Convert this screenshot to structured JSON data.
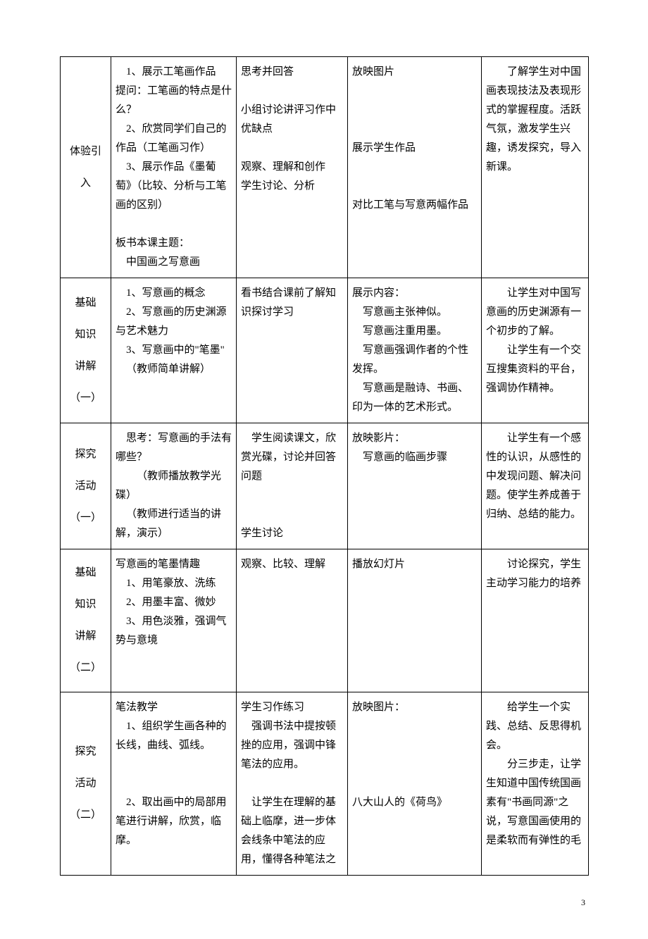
{
  "page_number": "3",
  "rows": [
    {
      "label": "体验引入",
      "col2": {
        "lines": [
          {
            "t": "1、展示工笔画作品",
            "cls": "indent1"
          },
          {
            "t": "提问：工笔画的特点是什么？"
          },
          {
            "t": "2、欣赏同学们自己的作品（工笔画习作）",
            "cls": "indent1"
          },
          {
            "t": "3、展示作品《墨葡萄》（比较、分析与工笔画的区别）",
            "cls": "indent1"
          },
          {
            "t": " "
          },
          {
            "t": "板书本课主题："
          },
          {
            "t": "中国画之写意画",
            "cls": "indent1"
          }
        ]
      },
      "col3": {
        "lines": [
          {
            "t": "思考并回答"
          },
          {
            "t": " "
          },
          {
            "t": "小组讨论讲评习作中优缺点"
          },
          {
            "t": " "
          },
          {
            "t": "观察、理解和创作"
          },
          {
            "t": "学生讨论、分析"
          }
        ]
      },
      "col4": {
        "lines": [
          {
            "t": "放映图片"
          },
          {
            "t": " "
          },
          {
            "t": " "
          },
          {
            "t": " "
          },
          {
            "t": "展示学生作品"
          },
          {
            "t": " "
          },
          {
            "t": " "
          },
          {
            "t": "对比工笔与写意两幅作品"
          }
        ]
      },
      "col5": {
        "lines": [
          {
            "t": "了解学生对中国画表现技法及表现形式的掌握程度。活跃气氛，激发学生兴趣，诱发探究，导入新课。",
            "cls": "indent"
          }
        ]
      }
    },
    {
      "label": "基础\n知识\n讲解\n（一）",
      "col2": {
        "lines": [
          {
            "t": "1、写意画的概念",
            "cls": "indent1"
          },
          {
            "t": "2、写意画的历史渊源与艺术魅力",
            "cls": "indent1"
          },
          {
            "t": "3、写意画中的\"笔墨\"",
            "cls": "indent1"
          },
          {
            "t": "（教师简单讲解）",
            "cls": "indent1"
          }
        ]
      },
      "col3": {
        "lines": [
          {
            "t": "看书结合课前了解知识探讨学习"
          }
        ]
      },
      "col4": {
        "lines": [
          {
            "t": "展示内容："
          },
          {
            "t": "写意画主张神似。",
            "cls": "indent1"
          },
          {
            "t": "写意画注重用墨。",
            "cls": "indent1"
          },
          {
            "t": "写意画强调作者的个性发挥。",
            "cls": "indent1"
          },
          {
            "t": "写意画是融诗、书画、印为一体的艺术形式。",
            "cls": "indent1"
          }
        ]
      },
      "col5": {
        "lines": [
          {
            "t": "让学生对中国写意画的历史渊源有一个初步的了解。",
            "cls": "indent"
          },
          {
            "t": "让学生有一个交互搜集资料的平台，强调协作精神。",
            "cls": "indent"
          }
        ]
      }
    },
    {
      "label": "探究\n活动\n（一）",
      "col2": {
        "lines": [
          {
            "t": "思考：写意画的手法有哪些？",
            "cls": "indent1"
          },
          {
            "t": "（教师播放教学光碟）",
            "cls": "indent"
          },
          {
            "t": "（教师进行适当的讲解，演示）",
            "cls": "indent1"
          }
        ]
      },
      "col3": {
        "lines": [
          {
            "t": "学生阅读课文，欣赏光碟，讨论并回答问题",
            "cls": "indent1"
          },
          {
            "t": " "
          },
          {
            "t": " "
          },
          {
            "t": "学生讨论"
          }
        ]
      },
      "col4": {
        "lines": [
          {
            "t": "放映影片："
          },
          {
            "t": "写意画的临画步骤",
            "cls": "indent1"
          }
        ]
      },
      "col5": {
        "lines": [
          {
            "t": "让学生有一个感性的认识，从感性的中发现问题、解决问题。使学生养成善于归纳、总结的能力。",
            "cls": "indent"
          }
        ]
      }
    },
    {
      "label": "基础\n知识\n讲解\n（二）",
      "col2": {
        "lines": [
          {
            "t": "写意画的笔墨情趣"
          },
          {
            "t": "1、用笔豪放、洗练",
            "cls": "indent1"
          },
          {
            "t": "2、用墨丰富、微妙",
            "cls": "indent1"
          },
          {
            "t": "3、用色淡雅，强调气势与意境",
            "cls": "indent1"
          }
        ]
      },
      "col3": {
        "lines": [
          {
            "t": "观察、比较、理解"
          }
        ]
      },
      "col4": {
        "lines": [
          {
            "t": "播放幻灯片"
          }
        ]
      },
      "col5": {
        "lines": [
          {
            "t": "讨论探究，学生主动学习能力的培养",
            "cls": "indent"
          }
        ]
      }
    },
    {
      "label": "探究\n活动\n（二）",
      "col2": {
        "lines": [
          {
            "t": "笔法教学"
          },
          {
            "t": "1、组织学生画各种的长线，曲线、弧线。",
            "cls": "indent1"
          },
          {
            "t": " "
          },
          {
            "t": " "
          },
          {
            "t": "2、取出画中的局部用笔进行讲解，欣赏，临摩。",
            "cls": "indent1"
          }
        ]
      },
      "col3": {
        "lines": [
          {
            "t": "学生习作练习"
          },
          {
            "t": "强调书法中提按顿挫的应用，强调中锋笔法的应用。",
            "cls": "indent1"
          },
          {
            "t": " "
          },
          {
            "t": "让学生在理解的基础上临摩，进一步体会线条中笔法的应用，懂得各种笔法之",
            "cls": "indent1"
          }
        ]
      },
      "col4": {
        "lines": [
          {
            "t": "放映图片："
          },
          {
            "t": " "
          },
          {
            "t": " "
          },
          {
            "t": " "
          },
          {
            "t": " "
          },
          {
            "t": "八大山人的《荷鸟》"
          }
        ]
      },
      "col5": {
        "lines": [
          {
            "t": "给学生一个实践、总结、反思得机会。",
            "cls": "indent"
          },
          {
            "t": "分三步走，让学生知道中国传统国画素有\"书画同源\"之说，写意国画使用的是柔软而有弹性的毛",
            "cls": "indent"
          }
        ]
      }
    }
  ]
}
